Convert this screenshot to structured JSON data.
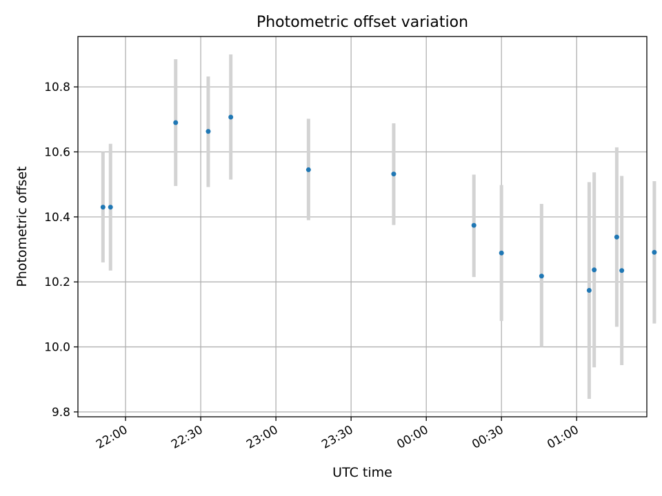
{
  "chart_data": {
    "type": "scatter",
    "title": "Photometric offset variation",
    "xlabel": "UTC time",
    "ylabel": "Photometric offset",
    "xlim": [
      "21:41",
      "01:28"
    ],
    "ylim": [
      9.785,
      10.955
    ],
    "grid": true,
    "x_ticks": [
      "22:00",
      "22:30",
      "23:00",
      "23:30",
      "00:00",
      "00:30",
      "01:00"
    ],
    "y_ticks": [
      "9.8",
      "10.0",
      "10.2",
      "10.4",
      "10.6",
      "10.8"
    ],
    "y_tick_values": [
      9.8,
      10.0,
      10.2,
      10.4,
      10.6,
      10.8
    ],
    "points": [
      {
        "x": "21:51",
        "y": 10.43,
        "ylow": 10.26,
        "yhigh": 10.6
      },
      {
        "x": "21:54",
        "y": 10.43,
        "ylow": 10.235,
        "yhigh": 10.625
      },
      {
        "x": "22:20",
        "y": 10.69,
        "ylow": 10.495,
        "yhigh": 10.885
      },
      {
        "x": "22:33",
        "y": 10.663,
        "ylow": 10.492,
        "yhigh": 10.832
      },
      {
        "x": "22:42",
        "y": 10.707,
        "ylow": 10.515,
        "yhigh": 10.9
      },
      {
        "x": "23:13",
        "y": 10.545,
        "ylow": 10.39,
        "yhigh": 10.702
      },
      {
        "x": "23:47",
        "y": 10.532,
        "ylow": 10.375,
        "yhigh": 10.688
      },
      {
        "x": "00:19",
        "y": 10.374,
        "ylow": 10.215,
        "yhigh": 10.53
      },
      {
        "x": "00:30",
        "y": 10.289,
        "ylow": 10.08,
        "yhigh": 10.498
      },
      {
        "x": "00:46",
        "y": 10.218,
        "ylow": 10.0,
        "yhigh": 10.44
      },
      {
        "x": "01:05",
        "y": 10.174,
        "ylow": 9.84,
        "yhigh": 10.507
      },
      {
        "x": "01:07",
        "y": 10.237,
        "ylow": 9.937,
        "yhigh": 10.537
      },
      {
        "x": "01:16",
        "y": 10.338,
        "ylow": 10.062,
        "yhigh": 10.614
      },
      {
        "x": "01:18",
        "y": 10.235,
        "ylow": 9.944,
        "yhigh": 10.526
      },
      {
        "x": "01:31",
        "y": 10.291,
        "ylow": 10.072,
        "yhigh": 10.51
      }
    ],
    "point_color": "#1f77b4",
    "errorbar_color": "#d3d3d3",
    "grid_color": "#b0b0b0"
  }
}
